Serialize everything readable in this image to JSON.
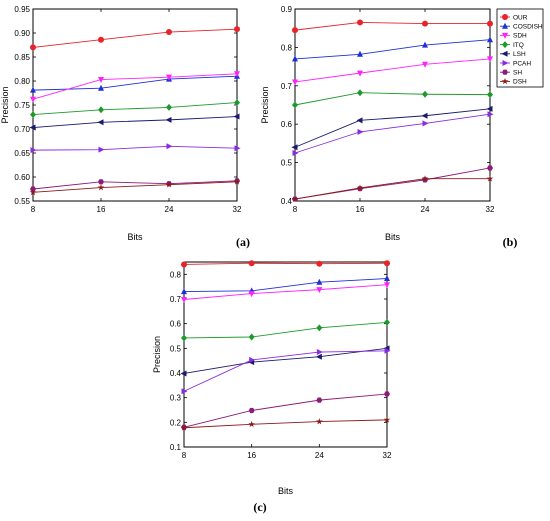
{
  "legend": {
    "entries": [
      "OUR",
      "COSDISH",
      "SDH",
      "ITQ",
      "LSH",
      "PCAH",
      "SH",
      "DSH"
    ]
  },
  "series_styles": [
    {
      "name": "OUR",
      "color": "#e8232a",
      "marker": "circle"
    },
    {
      "name": "COSDISH",
      "color": "#1f2fd6",
      "marker": "triangle-up"
    },
    {
      "name": "SDH",
      "color": "#ff22ff",
      "marker": "triangle-down"
    },
    {
      "name": "ITQ",
      "color": "#1e9a2c",
      "marker": "diamond"
    },
    {
      "name": "LSH",
      "color": "#1a1a6e",
      "marker": "triangle-left"
    },
    {
      "name": "PCAH",
      "color": "#8a2be2",
      "marker": "triangle-right"
    },
    {
      "name": "SH",
      "color": "#8b1c7a",
      "marker": "hexagon"
    },
    {
      "name": "DSH",
      "color": "#8b1a1a",
      "marker": "star"
    }
  ],
  "chart_data": [
    {
      "type": "line",
      "panel_label": "(a)",
      "xlabel": "Bits",
      "ylabel": "Precision",
      "x": [
        8,
        16,
        24,
        32
      ],
      "xticks": [
        "8",
        "16",
        "24",
        "32"
      ],
      "xlim": [
        8,
        32
      ],
      "ylim": [
        0.55,
        0.95
      ],
      "yticks": [
        "0.55",
        "0.60",
        "0.65",
        "0.70",
        "0.75",
        "0.80",
        "0.85",
        "0.90",
        "0.95"
      ],
      "series": [
        {
          "name": "OUR",
          "values": [
            0.87,
            0.886,
            0.902,
            0.908
          ]
        },
        {
          "name": "COSDISH",
          "values": [
            0.781,
            0.785,
            0.804,
            0.81
          ]
        },
        {
          "name": "SDH",
          "values": [
            0.762,
            0.803,
            0.808,
            0.815
          ]
        },
        {
          "name": "ITQ",
          "values": [
            0.73,
            0.74,
            0.745,
            0.755
          ]
        },
        {
          "name": "LSH",
          "values": [
            0.703,
            0.714,
            0.719,
            0.726
          ]
        },
        {
          "name": "PCAH",
          "values": [
            0.656,
            0.657,
            0.664,
            0.66
          ]
        },
        {
          "name": "SH",
          "values": [
            0.575,
            0.59,
            0.586,
            0.592
          ]
        },
        {
          "name": "DSH",
          "values": [
            0.568,
            0.578,
            0.584,
            0.59
          ]
        }
      ]
    },
    {
      "type": "line",
      "panel_label": "(b)",
      "xlabel": "Bits",
      "ylabel": "Precision",
      "x": [
        8,
        16,
        24,
        32
      ],
      "xticks": [
        "8",
        "16",
        "24",
        "32"
      ],
      "xlim": [
        8,
        32
      ],
      "ylim": [
        0.4,
        0.9
      ],
      "yticks": [
        "0.4",
        "0.5",
        "0.6",
        "0.7",
        "0.8",
        "0.9"
      ],
      "series": [
        {
          "name": "OUR",
          "values": [
            0.845,
            0.865,
            0.862,
            0.862
          ]
        },
        {
          "name": "COSDISH",
          "values": [
            0.77,
            0.782,
            0.806,
            0.82
          ]
        },
        {
          "name": "SDH",
          "values": [
            0.71,
            0.733,
            0.756,
            0.77
          ]
        },
        {
          "name": "ITQ",
          "values": [
            0.65,
            0.682,
            0.678,
            0.677
          ]
        },
        {
          "name": "LSH",
          "values": [
            0.54,
            0.61,
            0.622,
            0.64
          ]
        },
        {
          "name": "PCAH",
          "values": [
            0.525,
            0.58,
            0.602,
            0.626
          ]
        },
        {
          "name": "SH",
          "values": [
            0.405,
            0.432,
            0.455,
            0.486
          ]
        },
        {
          "name": "DSH",
          "values": [
            0.405,
            0.434,
            0.458,
            0.458
          ]
        }
      ]
    },
    {
      "type": "line",
      "panel_label": "(c)",
      "xlabel": "Bits",
      "ylabel": "Precision",
      "x": [
        8,
        16,
        24,
        32
      ],
      "xticks": [
        "8",
        "16",
        "24",
        "32"
      ],
      "xlim": [
        8,
        32
      ],
      "ylim": [
        0.1,
        0.85
      ],
      "yticks": [
        "0.1",
        "0.2",
        "0.3",
        "0.4",
        "0.5",
        "0.6",
        "0.7",
        "0.8"
      ],
      "series": [
        {
          "name": "OUR",
          "values": [
            0.84,
            0.845,
            0.843,
            0.845
          ]
        },
        {
          "name": "COSDISH",
          "values": [
            0.73,
            0.733,
            0.768,
            0.783
          ]
        },
        {
          "name": "SDH",
          "values": [
            0.698,
            0.722,
            0.738,
            0.758
          ]
        },
        {
          "name": "ITQ",
          "values": [
            0.542,
            0.546,
            0.583,
            0.605
          ]
        },
        {
          "name": "LSH",
          "values": [
            0.398,
            0.444,
            0.466,
            0.5
          ]
        },
        {
          "name": "PCAH",
          "values": [
            0.326,
            0.453,
            0.485,
            0.49
          ]
        },
        {
          "name": "SH",
          "values": [
            0.18,
            0.248,
            0.29,
            0.315
          ]
        },
        {
          "name": "DSH",
          "values": [
            0.178,
            0.192,
            0.203,
            0.21
          ]
        }
      ]
    }
  ]
}
